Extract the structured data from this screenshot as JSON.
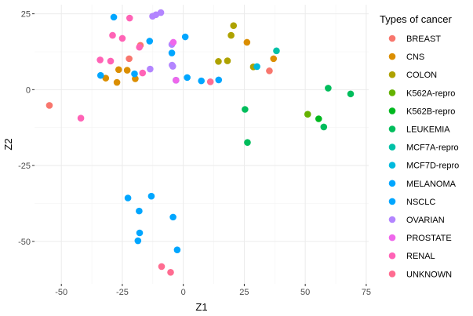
{
  "chart_data": {
    "type": "scatter",
    "xlabel": "Z1",
    "ylabel": "Z2",
    "xlim": [
      -61,
      76
    ],
    "ylim": [
      -64,
      28
    ],
    "x_ticks": [
      -50,
      -25,
      0,
      25,
      50,
      75
    ],
    "y_ticks": [
      -50,
      -25,
      0,
      25
    ],
    "x_tick_labels": [
      "-50",
      "-25",
      "0",
      "25",
      "50",
      "75"
    ],
    "y_tick_labels": [
      "-50",
      "-25",
      "0",
      "25"
    ],
    "grid": true,
    "legend_position": "right",
    "legend_title": "Types of cancer",
    "series": [
      {
        "name": "BREAST",
        "color": "#F8766D",
        "points": [
          [
            -54.9,
            -5.2
          ],
          [
            -22.2,
            10.2
          ],
          [
            -17.6,
            14.6
          ],
          [
            35.3,
            6.2
          ]
        ]
      },
      {
        "name": "CNS",
        "color": "#DB8E00",
        "points": [
          [
            -26.5,
            6.6
          ],
          [
            -31.8,
            3.8
          ],
          [
            -27.2,
            2.4
          ],
          [
            -23.0,
            6.4
          ],
          [
            -19.7,
            3.6
          ],
          [
            26.1,
            15.6
          ],
          [
            37.0,
            10.2
          ]
        ]
      },
      {
        "name": "COLON",
        "color": "#AEA200",
        "points": [
          [
            14.4,
            9.3
          ],
          [
            18.1,
            9.5
          ],
          [
            19.6,
            17.9
          ],
          [
            20.6,
            21.1
          ],
          [
            28.7,
            7.5
          ]
        ]
      },
      {
        "name": "K562A-repro",
        "color": "#64B200",
        "points": [
          [
            51.0,
            -8.1
          ]
        ]
      },
      {
        "name": "K562B-repro",
        "color": "#00B81F",
        "points": [
          [
            55.5,
            -9.6
          ]
        ]
      },
      {
        "name": "LEUKEMIA",
        "color": "#00BD5C",
        "points": [
          [
            25.3,
            -6.5
          ],
          [
            26.3,
            -17.4
          ],
          [
            57.6,
            -12.3
          ],
          [
            59.4,
            0.5
          ],
          [
            68.6,
            -1.4
          ]
        ]
      },
      {
        "name": "MCF7A-repro",
        "color": "#00C1A7",
        "points": [
          [
            38.2,
            12.8
          ]
        ]
      },
      {
        "name": "MCF7D-repro",
        "color": "#00BADE",
        "points": [
          [
            30.2,
            7.6
          ]
        ]
      },
      {
        "name": "MELANOMA",
        "color": "#00A6FF",
        "points": [
          [
            -28.5,
            23.9
          ],
          [
            -13.8,
            16.0
          ],
          [
            -4.7,
            12.1
          ],
          [
            -22.7,
            -35.7
          ],
          [
            -18.1,
            -40.0
          ],
          [
            -13.1,
            -35.1
          ],
          [
            -4.2,
            -42.0
          ],
          [
            -17.9,
            -47.2
          ],
          [
            -18.6,
            -49.8
          ],
          [
            -2.5,
            -52.8
          ]
        ]
      },
      {
        "name": "NSCLC",
        "color": "#00A6FF",
        "points": [
          [
            -33.9,
            4.7
          ],
          [
            -20.0,
            5.2
          ],
          [
            -3.0,
            3.1
          ],
          [
            0.8,
            17.4
          ],
          [
            1.6,
            4.0
          ],
          [
            7.4,
            2.9
          ],
          [
            14.5,
            3.2
          ]
        ]
      },
      {
        "name": "OVARIAN",
        "color": "#B385FF",
        "points": [
          [
            -13.6,
            6.8
          ],
          [
            -12.6,
            24.2
          ],
          [
            -11.2,
            24.7
          ],
          [
            -9.2,
            25.4
          ],
          [
            -4.7,
            14.9
          ],
          [
            -4.6,
            8.1
          ],
          [
            -4.3,
            7.7
          ]
        ]
      },
      {
        "name": "PROSTATE",
        "color": "#EF67EB",
        "points": [
          [
            -4.1,
            15.6
          ],
          [
            -3.0,
            3.1
          ]
        ]
      },
      {
        "name": "RENAL",
        "color": "#FF63B6",
        "points": [
          [
            -42.0,
            -9.4
          ],
          [
            -34.1,
            9.8
          ],
          [
            -29.8,
            9.4
          ],
          [
            -29.0,
            17.9
          ],
          [
            -25.0,
            16.9
          ],
          [
            -22.0,
            23.6
          ],
          [
            -18.0,
            14.0
          ],
          [
            -16.7,
            5.5
          ]
        ]
      },
      {
        "name": "UNKNOWN",
        "color": "#FF6C91",
        "points": [
          [
            -8.9,
            -58.3
          ],
          [
            -5.2,
            -60.2
          ],
          [
            11.1,
            2.6
          ]
        ]
      }
    ]
  }
}
